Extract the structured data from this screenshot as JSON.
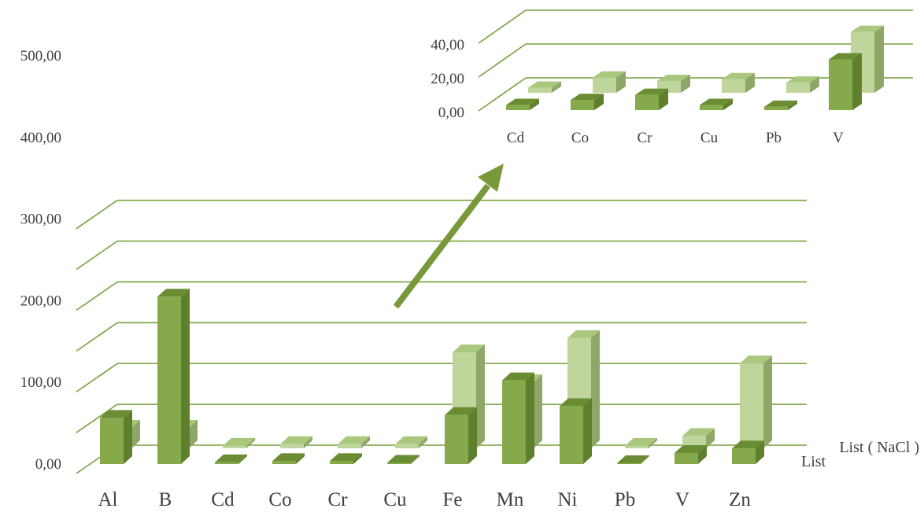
{
  "colors": {
    "grid": "#77a03d",
    "list_front": "#86aa4b",
    "list_top": "#6a8d33",
    "list_side": "#5e7f2c",
    "nacl_front": "#c0d59c",
    "nacl_top": "#a9c77d",
    "nacl_side": "#8ea668",
    "arrow": "#77993a",
    "text": "#404040"
  },
  "chart_data": [
    {
      "type": "bar",
      "categories": [
        "Al",
        "B",
        "Cd",
        "Co",
        "Cr",
        "Cu",
        "Fe",
        "Mn",
        "Ni",
        "Pb",
        "V",
        "Zn"
      ],
      "series": [
        {
          "name": "List",
          "values": [
            113,
            410,
            4,
            7,
            7,
            3,
            120,
            205,
            142,
            2,
            27,
            38
          ]
        },
        {
          "name": "List ( NaCl )",
          "values": [
            50,
            50,
            6,
            10,
            10,
            10,
            235,
            162,
            270,
            6,
            30,
            208
          ]
        }
      ],
      "yticks": [
        "0,00",
        "100,00",
        "200,00",
        "300,00",
        "400,00",
        "500,00"
      ],
      "ylim": [
        0,
        550
      ],
      "grid": true
    },
    {
      "type": "bar",
      "categories": [
        "Cd",
        "Co",
        "Cr",
        "Cu",
        "Pb",
        "V"
      ],
      "series": [
        {
          "name": "List",
          "values": [
            3,
            6,
            9,
            3,
            2,
            30
          ]
        },
        {
          "name": "List ( NaCl )",
          "values": [
            3,
            9,
            7,
            8,
            6,
            36
          ]
        }
      ],
      "yticks": [
        "0,00",
        "20,00",
        "40,00"
      ],
      "ylim": [
        0,
        60
      ],
      "grid": true
    }
  ]
}
